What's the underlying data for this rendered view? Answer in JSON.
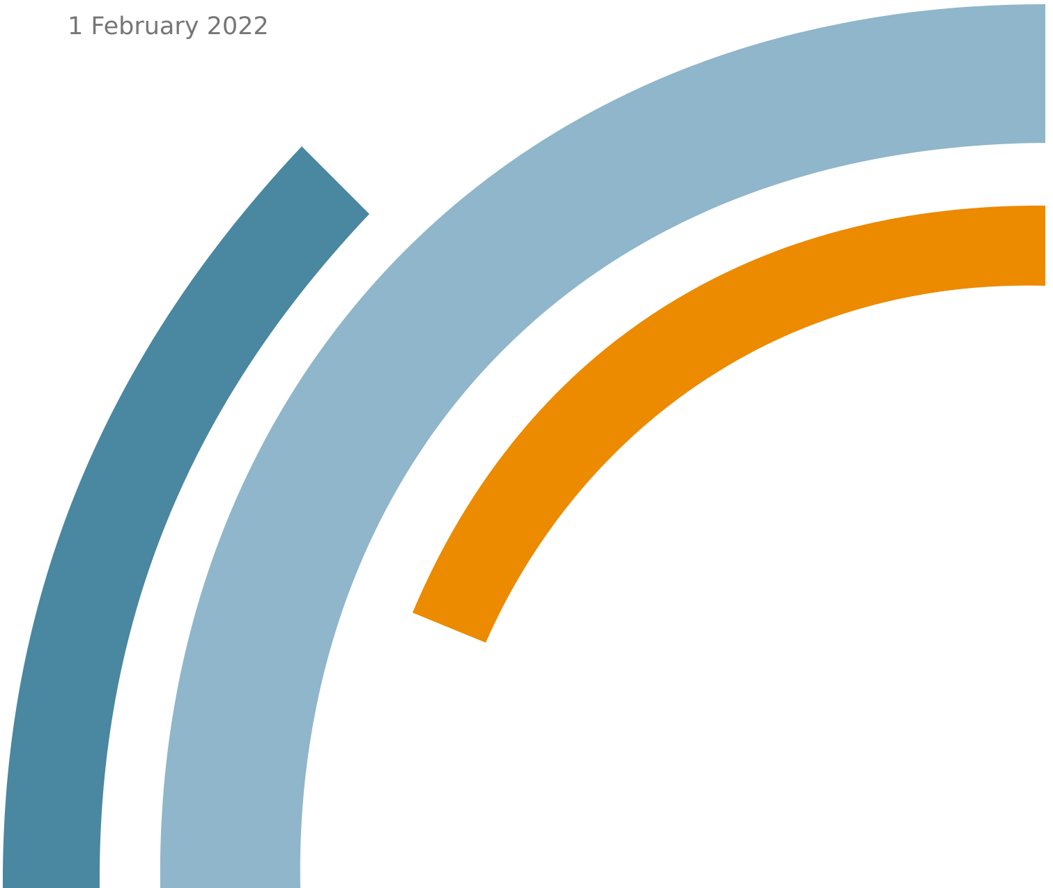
{
  "document": {
    "date": "1 February 2022"
  },
  "colors": {
    "date_text": "#767676",
    "arc_dark_teal": "#4a87a0",
    "arc_light_blue": "#8fb6ca",
    "arc_orange": "#ec8a00"
  }
}
